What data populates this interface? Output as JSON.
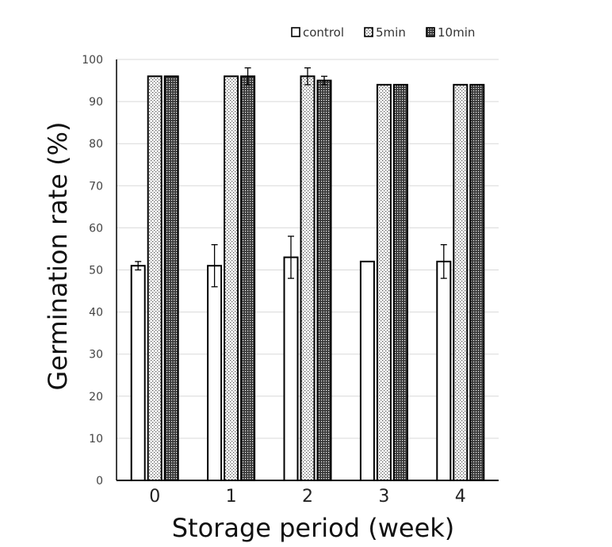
{
  "chart_data": {
    "type": "bar",
    "xlabel": "Storage period (week)",
    "ylabel": "Germination rate (%)",
    "ylim": [
      0,
      100
    ],
    "yticks": [
      0,
      10,
      20,
      30,
      40,
      50,
      60,
      70,
      80,
      90,
      100
    ],
    "grid": "horizontal",
    "legend_position": "top-right",
    "categories": [
      "0",
      "1",
      "2",
      "3",
      "4"
    ],
    "series": [
      {
        "name": "control",
        "pattern": "none",
        "values": [
          51,
          51,
          53,
          52,
          52
        ],
        "errors": [
          1,
          5,
          5,
          0,
          4
        ]
      },
      {
        "name": "5min",
        "pattern": "light-dots",
        "values": [
          96,
          96,
          96,
          94,
          94
        ],
        "errors": [
          0,
          0,
          2,
          0,
          0
        ]
      },
      {
        "name": "10min",
        "pattern": "dense-dots",
        "values": [
          96,
          96,
          95,
          94,
          94
        ],
        "errors": [
          0,
          2,
          1,
          0,
          0
        ]
      }
    ]
  }
}
